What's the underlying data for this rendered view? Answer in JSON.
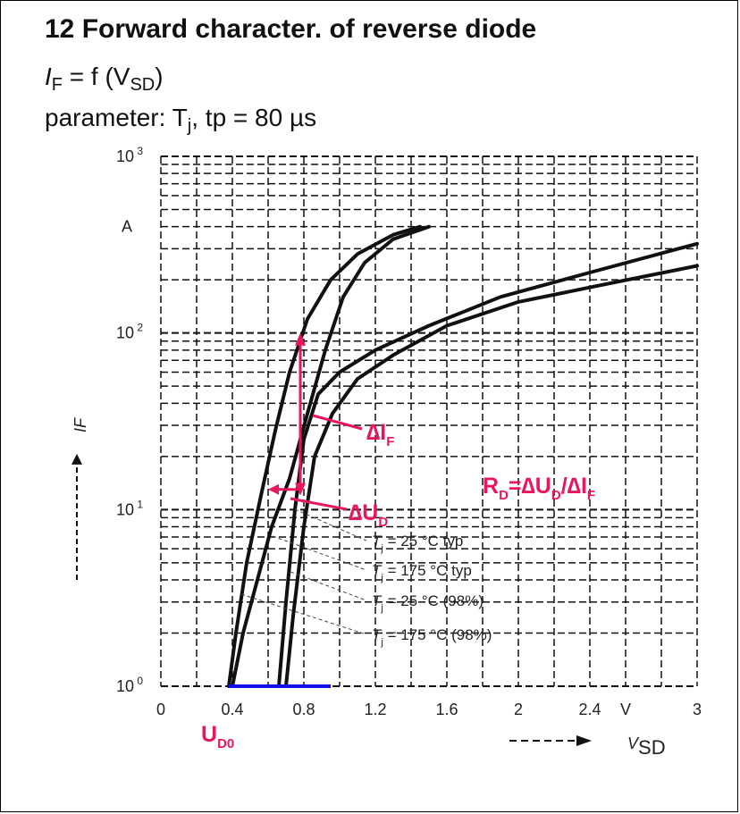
{
  "header": {
    "title": "12 Forward character. of reverse diode",
    "subtitle_if": "I",
    "subtitle_if_sub": "F",
    "subtitle_eq": " = f (V",
    "subtitle_v_sub": "SD",
    "subtitle_close": ")",
    "param_label": "parameter: T",
    "param_j_sub": "j",
    "param_rest": ", tp = 80 µs"
  },
  "chart_data": {
    "type": "line",
    "x_scale": "linear",
    "y_scale": "log",
    "xlim": [
      0,
      3
    ],
    "ylim": [
      1,
      1000
    ],
    "x_ticks": [
      "0",
      "0.4",
      "0.8",
      "1.2",
      "1.6",
      "2",
      "2.4",
      "V",
      "3"
    ],
    "x_tick_values": [
      0,
      0.4,
      0.8,
      1.2,
      1.6,
      2.0,
      2.4,
      2.6,
      3.0
    ],
    "y_ticks": [
      {
        "base": "10",
        "exp": "0",
        "value": 1
      },
      {
        "base": "10",
        "exp": "1",
        "value": 10
      },
      {
        "base": "10",
        "exp": "2",
        "value": 100
      },
      {
        "base": "10",
        "exp": "3",
        "value": 1000
      }
    ],
    "y_unit": "A",
    "xlabel_main": "V",
    "xlabel_sub": "SD",
    "ylabel": "IF",
    "grid": true,
    "series": [
      {
        "name": "Tj = 175 °C typ",
        "x": [
          0.38,
          0.42,
          0.48,
          0.56,
          0.64,
          0.72,
          0.82,
          0.95,
          1.1,
          1.3,
          1.45
        ],
        "y": [
          1,
          2,
          5,
          12,
          28,
          60,
          120,
          200,
          280,
          360,
          400
        ]
      },
      {
        "name": "Tj = 175 °C (98%)",
        "x": [
          0.4,
          0.46,
          0.54,
          0.62,
          0.72,
          0.82,
          0.92,
          1.02,
          1.14,
          1.3,
          1.5
        ],
        "y": [
          1,
          2,
          4,
          8,
          15,
          35,
          80,
          160,
          250,
          340,
          400
        ]
      },
      {
        "name": "Tj = 25 °C typ",
        "x": [
          0.66,
          0.7,
          0.75,
          0.8,
          0.88,
          1.0,
          1.2,
          1.5,
          1.9,
          2.4,
          3.0
        ],
        "y": [
          1,
          3,
          10,
          25,
          45,
          60,
          80,
          110,
          160,
          220,
          320
        ]
      },
      {
        "name": "Tj = 25 °C (98%)",
        "x": [
          0.7,
          0.74,
          0.8,
          0.86,
          0.96,
          1.1,
          1.3,
          1.6,
          2.0,
          2.5,
          3.0
        ],
        "y": [
          1,
          2.5,
          8,
          20,
          35,
          55,
          75,
          110,
          150,
          190,
          240
        ]
      }
    ],
    "legend": [
      {
        "main": "T",
        "sub": "j",
        "text": " = 25 °C typ"
      },
      {
        "main": "T",
        "sub": "j",
        "text": " = 175 °C typ"
      },
      {
        "main": "T",
        "sub": "j",
        "text": " = 25 °C (98%)"
      },
      {
        "main": "T",
        "sub": "j",
        "text": " = 175 °C (98%)"
      }
    ],
    "annotations": {
      "delta_if": {
        "main": "∆I",
        "sub": "F"
      },
      "delta_ud": {
        "main": "∆U",
        "sub": "D"
      },
      "rd_formula": {
        "r": "R",
        "r_sub": "D",
        "eq": "=∆U",
        "u_sub": "D",
        "slash": "/∆I",
        "i_sub": "F"
      },
      "ud0": {
        "main": "U",
        "sub": "D0"
      },
      "arrow_x": 0.78,
      "arrow_y_top": 100,
      "arrow_y_bottom": 12,
      "horiz_y": 13,
      "horiz_x_left": 0.6,
      "ud0_segment": [
        0.38,
        0.95
      ]
    },
    "colors": {
      "curve": "#111111",
      "annotation": "#e8175d",
      "baseline": "#1010e6",
      "grid": "#111111"
    }
  }
}
